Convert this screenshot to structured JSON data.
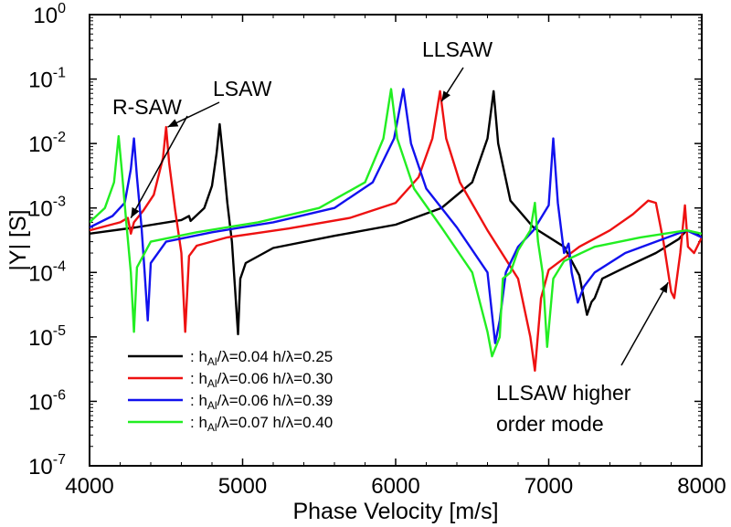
{
  "chart_data": {
    "type": "line",
    "xlabel": "Phase Velocity [m/s]",
    "ylabel": "|Y| [S]",
    "xlim": [
      4000,
      8000
    ],
    "ylim_exponents": [
      -7,
      0
    ],
    "yscale": "log",
    "grid": false,
    "legend_placement": "bottom-left",
    "x_ticks": [
      "4000",
      "5000",
      "6000",
      "7000",
      "8000"
    ],
    "y_ticks": [
      {
        "base": "10",
        "exp": "0",
        "value": 1
      },
      {
        "base": "10",
        "exp": "-1",
        "value": 0.1
      },
      {
        "base": "10",
        "exp": "-2",
        "value": 0.01
      },
      {
        "base": "10",
        "exp": "-3",
        "value": 0.001
      },
      {
        "base": "10",
        "exp": "-4",
        "value": 0.0001
      },
      {
        "base": "10",
        "exp": "-5",
        "value": 1e-05
      },
      {
        "base": "10",
        "exp": "-6",
        "value": 1e-06
      },
      {
        "base": "10",
        "exp": "-7",
        "value": 1e-07
      }
    ],
    "annotations": [
      {
        "text": "R-SAW",
        "target": [
          4270,
          0.0007
        ]
      },
      {
        "text": "LSAW",
        "target": [
          4510,
          0.018
        ]
      },
      {
        "text": "LLSAW",
        "target": [
          6300,
          0.045
        ]
      },
      {
        "text_lines": [
          "LLSAW  higher",
          "order mode"
        ],
        "target": [
          7780,
          7e-05
        ]
      }
    ],
    "series": [
      {
        "name": {
          "prefix": ":  h",
          "sub": "Al",
          "suffix": "/λ=0.04  h/λ=0.25"
        },
        "color": "#000000",
        "points": [
          [
            4000,
            0.0004
          ],
          [
            4300,
            0.0005
          ],
          [
            4600,
            0.00065
          ],
          [
            4650,
            0.00075
          ],
          [
            4660,
            0.00063
          ],
          [
            4750,
            0.001
          ],
          [
            4800,
            0.0022
          ],
          [
            4830,
            0.007
          ],
          [
            4850,
            0.02
          ],
          [
            4870,
            0.007
          ],
          [
            4900,
            0.0012
          ],
          [
            4930,
            0.0003
          ],
          [
            4950,
            6e-05
          ],
          [
            4970,
            1.1e-05
          ],
          [
            4985,
            8e-05
          ],
          [
            5020,
            0.00014
          ],
          [
            5200,
            0.00024
          ],
          [
            5600,
            0.00037
          ],
          [
            6000,
            0.00055
          ],
          [
            6300,
            0.001
          ],
          [
            6500,
            0.0025
          ],
          [
            6600,
            0.012
          ],
          [
            6640,
            0.065
          ],
          [
            6670,
            0.01
          ],
          [
            6750,
            0.0013
          ],
          [
            6900,
            0.0005
          ],
          [
            7100,
            0.00025
          ],
          [
            7200,
            9e-05
          ],
          [
            7250,
            2.2e-05
          ],
          [
            7280,
            3.5e-05
          ],
          [
            7300,
            4e-05
          ],
          [
            7350,
            8e-05
          ],
          [
            7500,
            0.00012
          ],
          [
            7700,
            0.0002
          ],
          [
            7850,
            0.00033
          ],
          [
            7900,
            0.00045
          ],
          [
            7950,
            0.00042
          ],
          [
            8000,
            0.00035
          ]
        ]
      },
      {
        "name": {
          "prefix": ":  h",
          "sub": "Al",
          "suffix": "/λ=0.06  h/λ=0.30"
        },
        "color": "#ee1111",
        "points": [
          [
            4000,
            0.00045
          ],
          [
            4200,
            0.0006
          ],
          [
            4250,
            0.0007
          ],
          [
            4270,
            0.0004
          ],
          [
            4290,
            0.0006
          ],
          [
            4350,
            0.0009
          ],
          [
            4420,
            0.0016
          ],
          [
            4480,
            0.006
          ],
          [
            4500,
            0.018
          ],
          [
            4520,
            0.005
          ],
          [
            4560,
            0.0009
          ],
          [
            4600,
            0.0002
          ],
          [
            4625,
            1.2e-05
          ],
          [
            4650,
            0.00018
          ],
          [
            4700,
            0.00026
          ],
          [
            4900,
            0.00035
          ],
          [
            5300,
            0.00048
          ],
          [
            5700,
            0.0007
          ],
          [
            6000,
            0.0012
          ],
          [
            6150,
            0.003
          ],
          [
            6240,
            0.012
          ],
          [
            6290,
            0.065
          ],
          [
            6330,
            0.012
          ],
          [
            6420,
            0.0025
          ],
          [
            6600,
            0.00045
          ],
          [
            6800,
            8e-05
          ],
          [
            6880,
            1e-05
          ],
          [
            6910,
            3e-06
          ],
          [
            6950,
            4e-05
          ],
          [
            7000,
            0.00011
          ],
          [
            7200,
            0.00025
          ],
          [
            7400,
            0.00045
          ],
          [
            7550,
            0.0008
          ],
          [
            7650,
            0.0013
          ],
          [
            7700,
            0.0012
          ],
          [
            7750,
            0.0003
          ],
          [
            7800,
            5e-05
          ],
          [
            7820,
            4e-05
          ],
          [
            7860,
            0.0002
          ],
          [
            7890,
            0.0011
          ],
          [
            7910,
            0.00025
          ],
          [
            7950,
            0.0002
          ],
          [
            8000,
            0.00035
          ]
        ]
      },
      {
        "name": {
          "prefix": ":  h",
          "sub": "Al",
          "suffix": "/λ=0.06  h/λ=0.39"
        },
        "color": "#1111ee",
        "points": [
          [
            4000,
            0.0005
          ],
          [
            4150,
            0.00075
          ],
          [
            4230,
            0.0012
          ],
          [
            4270,
            0.004
          ],
          [
            4290,
            0.012
          ],
          [
            4310,
            0.003
          ],
          [
            4340,
            0.0005
          ],
          [
            4360,
            0.0001
          ],
          [
            4380,
            1.8e-05
          ],
          [
            4400,
            0.00014
          ],
          [
            4500,
            0.0003
          ],
          [
            4800,
            0.00042
          ],
          [
            5200,
            0.0006
          ],
          [
            5600,
            0.001
          ],
          [
            5850,
            0.0025
          ],
          [
            5990,
            0.012
          ],
          [
            6050,
            0.07
          ],
          [
            6100,
            0.01
          ],
          [
            6200,
            0.002
          ],
          [
            6400,
            0.0005
          ],
          [
            6600,
            0.0001
          ],
          [
            6650,
            8e-06
          ],
          [
            6680,
            1.8e-05
          ],
          [
            6720,
            0.0001
          ],
          [
            6800,
            0.00025
          ],
          [
            6900,
            0.00045
          ],
          [
            7000,
            0.0011
          ],
          [
            7030,
            0.012
          ],
          [
            7060,
            0.0012
          ],
          [
            7100,
            0.0002
          ],
          [
            7130,
            0.00028
          ],
          [
            7150,
            0.0001
          ],
          [
            7190,
            3.4e-05
          ],
          [
            7230,
            6e-05
          ],
          [
            7300,
            0.0001
          ],
          [
            7500,
            0.0002
          ],
          [
            7700,
            0.0003
          ],
          [
            7900,
            0.00045
          ],
          [
            8000,
            0.00035
          ]
        ]
      },
      {
        "name": {
          "prefix": ":  h",
          "sub": "Al",
          "suffix": "/λ=0.07  h/λ=0.40"
        },
        "color": "#22ee22",
        "points": [
          [
            4000,
            0.0006
          ],
          [
            4100,
            0.001
          ],
          [
            4160,
            0.0025
          ],
          [
            4190,
            0.013
          ],
          [
            4210,
            0.004
          ],
          [
            4240,
            0.0006
          ],
          [
            4270,
            0.0001
          ],
          [
            4290,
            1.2e-05
          ],
          [
            4310,
            0.00012
          ],
          [
            4400,
            0.0003
          ],
          [
            4700,
            0.00042
          ],
          [
            5100,
            0.0006
          ],
          [
            5500,
            0.001
          ],
          [
            5800,
            0.0025
          ],
          [
            5920,
            0.012
          ],
          [
            5970,
            0.07
          ],
          [
            6010,
            0.012
          ],
          [
            6120,
            0.002
          ],
          [
            6300,
            0.0005
          ],
          [
            6500,
            0.0001
          ],
          [
            6600,
            1.2e-05
          ],
          [
            6630,
            5e-06
          ],
          [
            6680,
            1e-05
          ],
          [
            6700,
            8e-05
          ],
          [
            6750,
            0.0001
          ],
          [
            6800,
            0.00022
          ],
          [
            6880,
            0.00045
          ],
          [
            6910,
            0.0012
          ],
          [
            6930,
            0.0003
          ],
          [
            6960,
            0.0001
          ],
          [
            6990,
            7e-06
          ],
          [
            7030,
            8e-05
          ],
          [
            7100,
            0.00015
          ],
          [
            7300,
            0.00025
          ],
          [
            7600,
            0.00035
          ],
          [
            7900,
            0.00045
          ],
          [
            8000,
            0.0004
          ]
        ]
      }
    ]
  }
}
